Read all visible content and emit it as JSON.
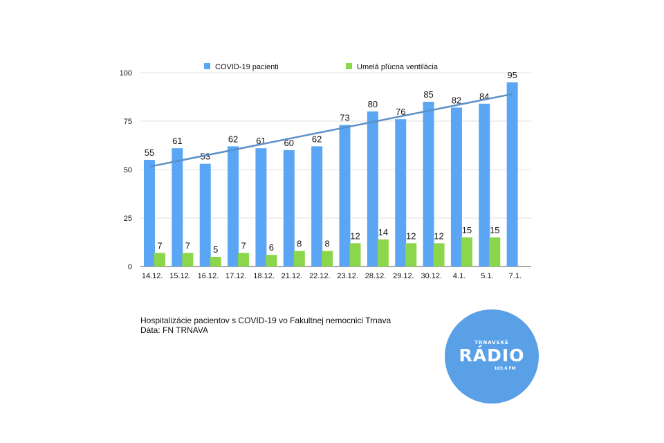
{
  "chart_data": {
    "type": "bar",
    "categories": [
      "14.12.",
      "15.12.",
      "16.12.",
      "17.12.",
      "18.12.",
      "21.12.",
      "22.12.",
      "23.12.",
      "28.12.",
      "29.12.",
      "30.12.",
      "4.1.",
      "5.1.",
      "7.1."
    ],
    "series": [
      {
        "name": "COVID-19 pacienti",
        "color": "#5aa6f5",
        "values": [
          55,
          61,
          53,
          62,
          61,
          60,
          62,
          73,
          80,
          76,
          85,
          82,
          84,
          95
        ]
      },
      {
        "name": "Umelá pľúcna ventilácia",
        "color": "#8cd64b",
        "values": [
          7,
          7,
          5,
          7,
          6,
          8,
          8,
          12,
          14,
          12,
          12,
          15,
          15,
          null
        ]
      }
    ],
    "trendline": {
      "series": "COVID-19 pacienti",
      "start": 51.5,
      "end": 89,
      "color": "#5b8fc7"
    },
    "yticks": [
      0,
      25,
      50,
      75,
      100
    ],
    "ylim": [
      0,
      100
    ],
    "grid": true,
    "legend": "top"
  },
  "caption": {
    "line1": "Hospitalizácie pacientov s COVID-19 vo Fakultnej nemocnici Trnava",
    "line2": "Dáta: FN TRNAVA"
  },
  "logo": {
    "top": "TRNAVSKÉ",
    "main": "RÁDIO",
    "freq": "103.6 FM"
  }
}
